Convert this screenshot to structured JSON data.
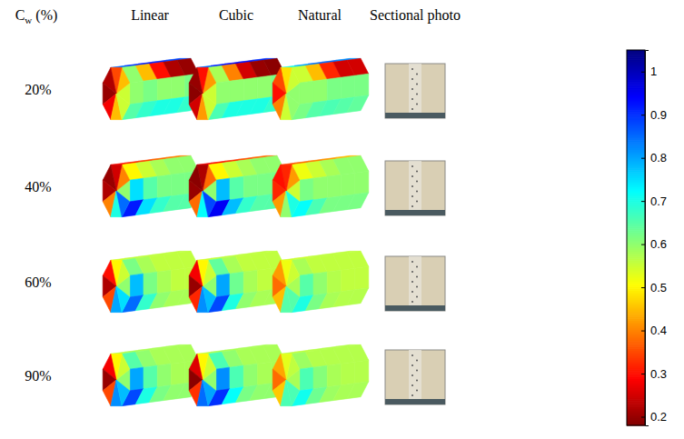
{
  "chart_data": {
    "type": "heatmap",
    "row_title": "Cw (%)",
    "columns": [
      "Linear",
      "Cubic",
      "Natural",
      "Sectional photo"
    ],
    "rows": [
      "20%",
      "40%",
      "60%",
      "90%"
    ],
    "panels": [
      [
        {
          "end": [
            0.55,
            0.45,
            0.35,
            0.22,
            0.2,
            0.28,
            0.45,
            0.55
          ],
          "lateral": [
            [
              0.85,
              0.9,
              0.92,
              0.9,
              0.88
            ],
            [
              0.6,
              0.45,
              0.3,
              0.22,
              0.2
            ],
            [
              0.6,
              0.62,
              0.6,
              0.6,
              0.62
            ],
            [
              0.65,
              0.68,
              0.7,
              0.7,
              0.68
            ]
          ]
        },
        {
          "end": [
            0.55,
            0.42,
            0.3,
            0.2,
            0.19,
            0.25,
            0.42,
            0.55
          ],
          "lateral": [
            [
              0.85,
              0.92,
              0.95,
              0.92,
              0.9
            ],
            [
              0.58,
              0.4,
              0.25,
              0.2,
              0.19
            ],
            [
              0.6,
              0.6,
              0.6,
              0.6,
              0.62
            ],
            [
              0.66,
              0.7,
              0.7,
              0.7,
              0.68
            ]
          ]
        },
        {
          "end": [
            0.6,
            0.55,
            0.48,
            0.35,
            0.3,
            0.4,
            0.55,
            0.6
          ],
          "lateral": [
            [
              0.7,
              0.8,
              0.85,
              0.85,
              0.82
            ],
            [
              0.55,
              0.45,
              0.32,
              0.25,
              0.25
            ],
            [
              0.6,
              0.6,
              0.62,
              0.62,
              0.62
            ],
            [
              0.62,
              0.65,
              0.66,
              0.65,
              0.64
            ]
          ]
        }
      ],
      [
        {
          "end": [
            0.6,
            0.4,
            0.25,
            0.2,
            0.22,
            0.4,
            0.7,
            0.85
          ],
          "lateral": [
            [
              0.3,
              0.32,
              0.35,
              0.38,
              0.4
            ],
            [
              0.5,
              0.55,
              0.58,
              0.6,
              0.6
            ],
            [
              0.75,
              0.65,
              0.62,
              0.62,
              0.62
            ],
            [
              0.92,
              0.75,
              0.68,
              0.65,
              0.65
            ]
          ]
        },
        {
          "end": [
            0.6,
            0.38,
            0.22,
            0.19,
            0.2,
            0.38,
            0.72,
            0.88
          ],
          "lateral": [
            [
              0.28,
              0.3,
              0.33,
              0.36,
              0.38
            ],
            [
              0.5,
              0.55,
              0.58,
              0.6,
              0.6
            ],
            [
              0.78,
              0.65,
              0.62,
              0.62,
              0.62
            ],
            [
              0.95,
              0.78,
              0.68,
              0.65,
              0.65
            ]
          ]
        },
        {
          "end": [
            0.55,
            0.42,
            0.32,
            0.3,
            0.32,
            0.42,
            0.6,
            0.7
          ],
          "lateral": [
            [
              0.35,
              0.38,
              0.4,
              0.42,
              0.45
            ],
            [
              0.52,
              0.55,
              0.58,
              0.6,
              0.6
            ],
            [
              0.62,
              0.6,
              0.6,
              0.6,
              0.6
            ],
            [
              0.72,
              0.66,
              0.62,
              0.62,
              0.62
            ]
          ]
        }
      ],
      [
        {
          "end": [
            0.6,
            0.55,
            0.5,
            0.3,
            0.22,
            0.35,
            0.8,
            0.75
          ],
          "lateral": [
            [
              0.55,
              0.56,
              0.56,
              0.56,
              0.56
            ],
            [
              0.62,
              0.58,
              0.56,
              0.56,
              0.56
            ],
            [
              0.78,
              0.62,
              0.58,
              0.56,
              0.56
            ],
            [
              0.85,
              0.68,
              0.6,
              0.58,
              0.58
            ]
          ]
        },
        {
          "end": [
            0.6,
            0.55,
            0.5,
            0.28,
            0.2,
            0.32,
            0.82,
            0.78
          ],
          "lateral": [
            [
              0.55,
              0.56,
              0.56,
              0.56,
              0.56
            ],
            [
              0.64,
              0.58,
              0.56,
              0.56,
              0.56
            ],
            [
              0.8,
              0.63,
              0.58,
              0.56,
              0.56
            ],
            [
              0.88,
              0.7,
              0.6,
              0.58,
              0.58
            ]
          ]
        },
        {
          "end": [
            0.58,
            0.55,
            0.52,
            0.42,
            0.38,
            0.45,
            0.65,
            0.65
          ],
          "lateral": [
            [
              0.55,
              0.55,
              0.56,
              0.56,
              0.56
            ],
            [
              0.58,
              0.56,
              0.56,
              0.56,
              0.56
            ],
            [
              0.65,
              0.6,
              0.57,
              0.56,
              0.56
            ],
            [
              0.7,
              0.62,
              0.58,
              0.57,
              0.57
            ]
          ]
        }
      ],
      [
        {
          "end": [
            0.6,
            0.55,
            0.5,
            0.28,
            0.2,
            0.35,
            0.82,
            0.78
          ],
          "lateral": [
            [
              0.56,
              0.58,
              0.58,
              0.58,
              0.58
            ],
            [
              0.65,
              0.6,
              0.58,
              0.58,
              0.58
            ],
            [
              0.8,
              0.65,
              0.6,
              0.58,
              0.58
            ],
            [
              0.88,
              0.7,
              0.62,
              0.6,
              0.6
            ]
          ]
        },
        {
          "end": [
            0.6,
            0.55,
            0.5,
            0.26,
            0.19,
            0.33,
            0.85,
            0.8
          ],
          "lateral": [
            [
              0.56,
              0.58,
              0.58,
              0.58,
              0.58
            ],
            [
              0.66,
              0.6,
              0.58,
              0.58,
              0.58
            ],
            [
              0.82,
              0.66,
              0.6,
              0.58,
              0.58
            ],
            [
              0.9,
              0.72,
              0.62,
              0.6,
              0.6
            ]
          ]
        },
        {
          "end": [
            0.58,
            0.56,
            0.53,
            0.43,
            0.38,
            0.46,
            0.66,
            0.66
          ],
          "lateral": [
            [
              0.56,
              0.56,
              0.57,
              0.57,
              0.57
            ],
            [
              0.59,
              0.57,
              0.57,
              0.57,
              0.57
            ],
            [
              0.66,
              0.61,
              0.58,
              0.57,
              0.57
            ],
            [
              0.71,
              0.63,
              0.59,
              0.58,
              0.58
            ]
          ]
        }
      ]
    ],
    "colorbar": {
      "range": [
        0.18,
        1.05
      ],
      "ticks": [
        0.2,
        0.3,
        0.4,
        0.5,
        0.6,
        0.7,
        0.8,
        0.9,
        1
      ]
    }
  }
}
